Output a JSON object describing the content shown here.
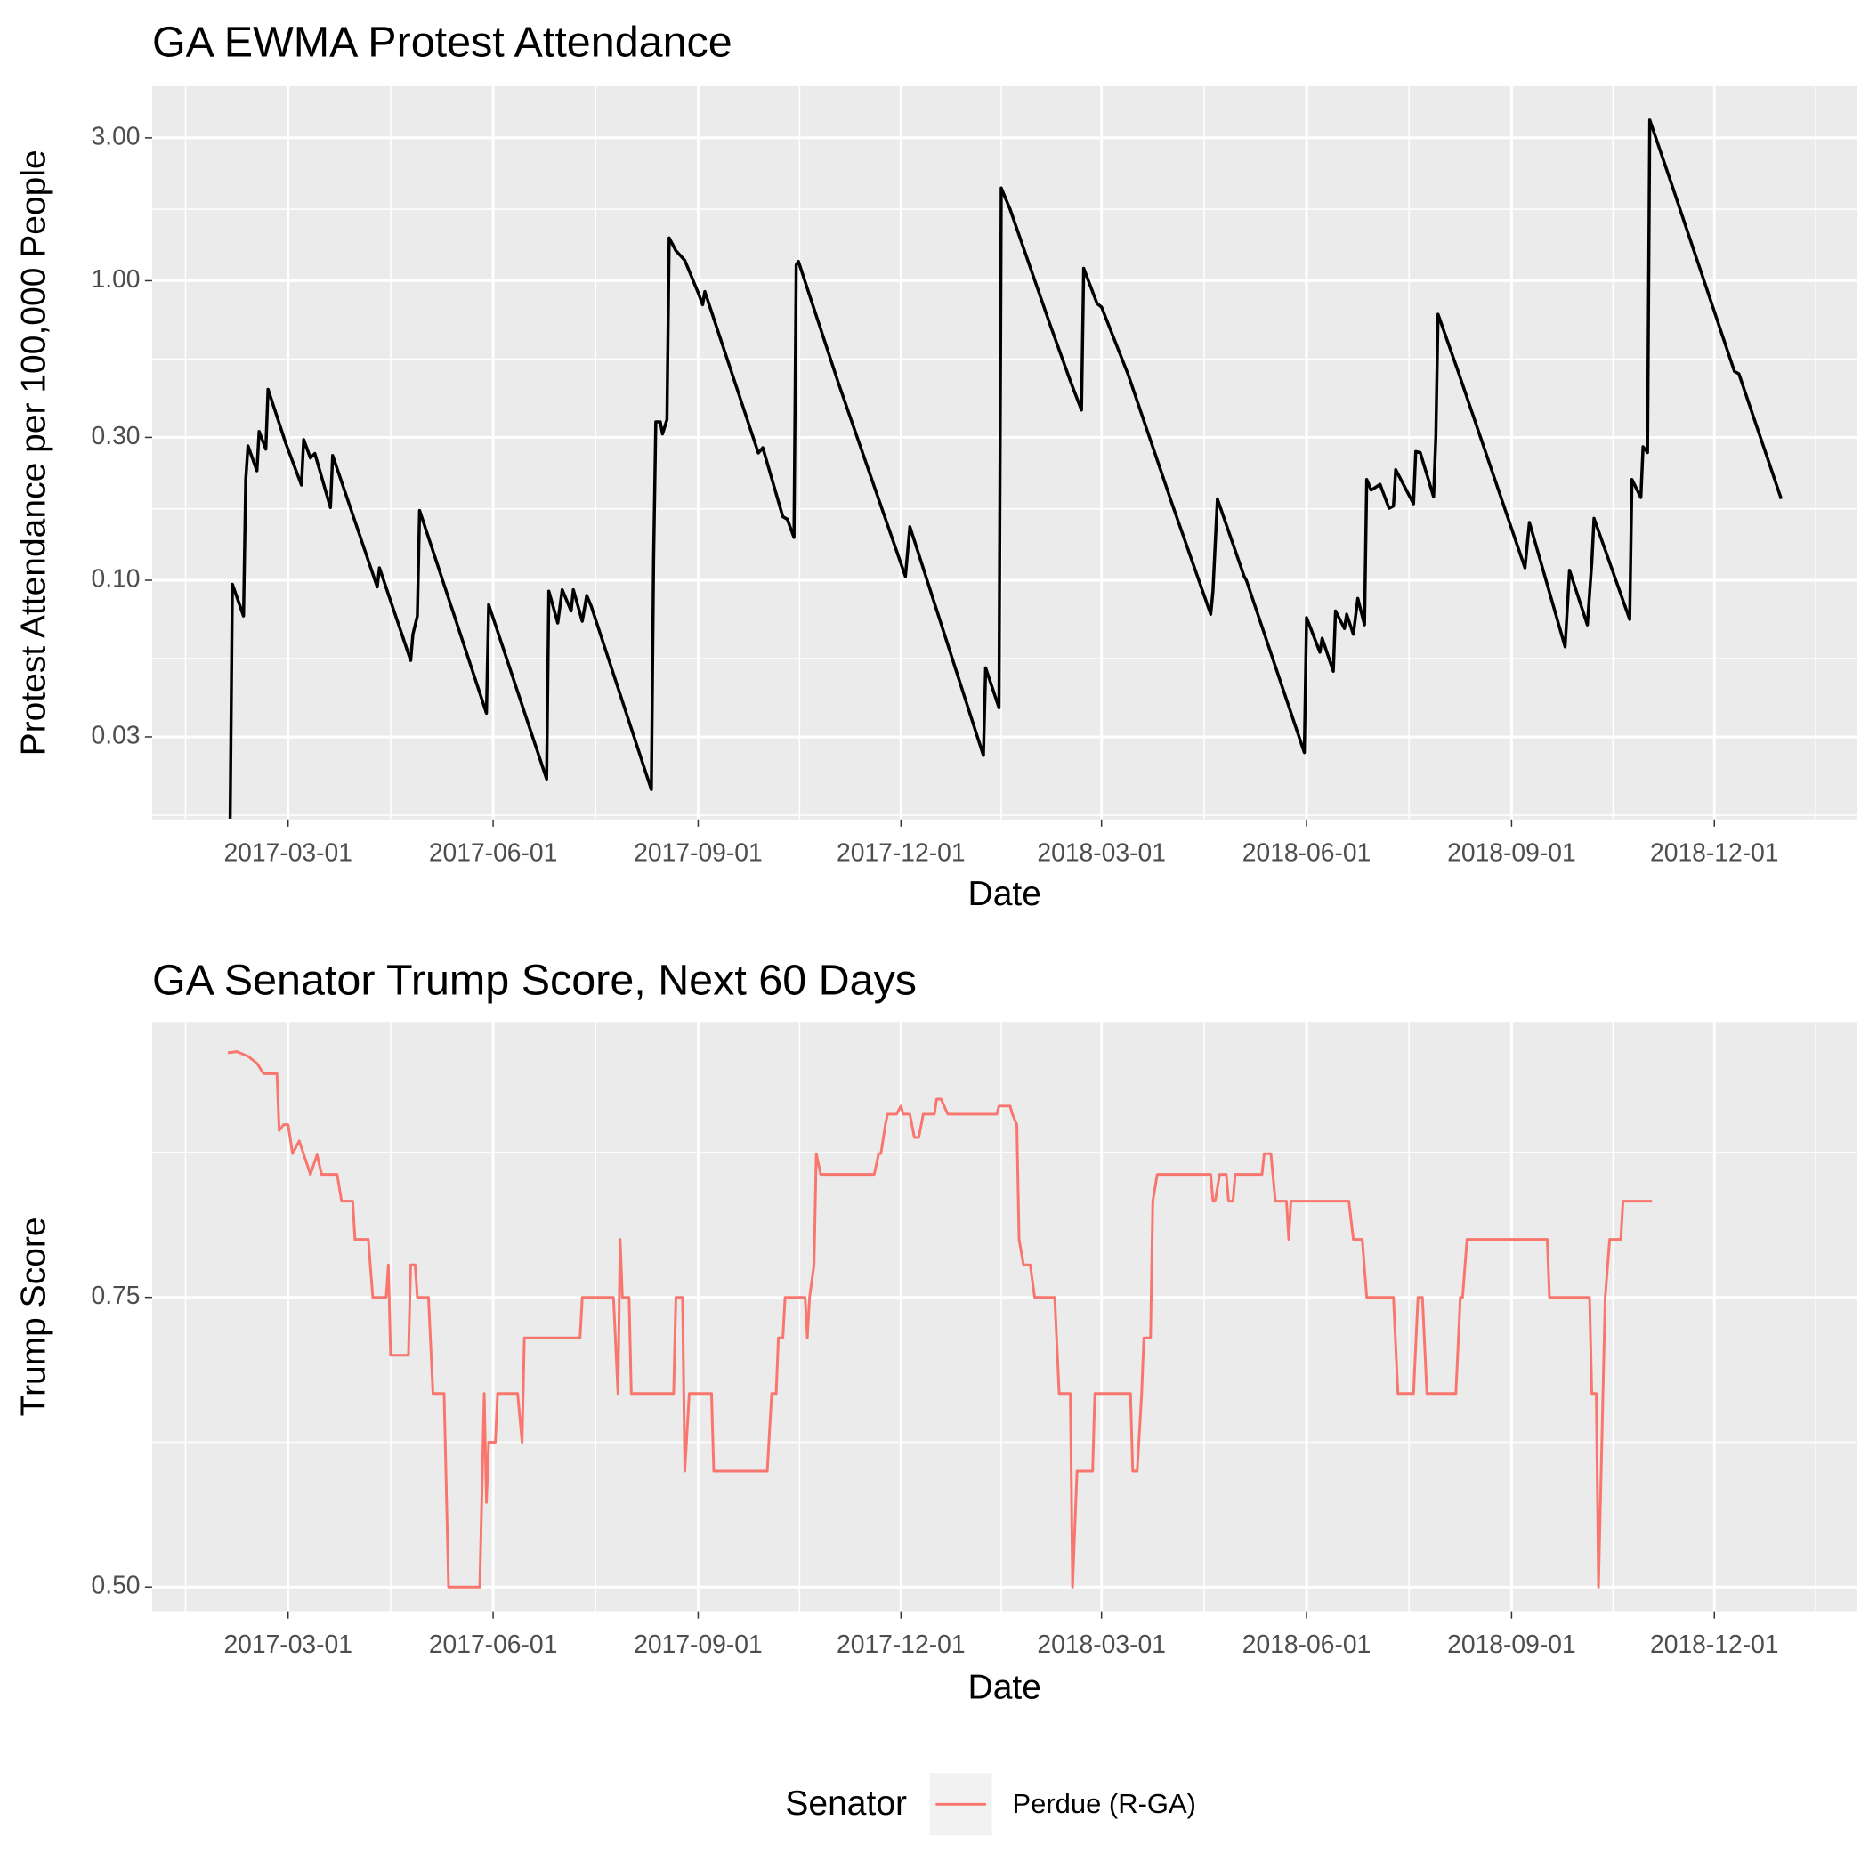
{
  "chart_data": [
    {
      "type": "line",
      "title": "GA EWMA Protest Attendance",
      "x_label": "Date",
      "y_label": "Protest Attendance per 100,000 People",
      "log_scale": true,
      "grid": true,
      "color": "#000000",
      "x": [
        "2017-02-03",
        "2017-02-04",
        "2017-02-09",
        "2017-02-10",
        "2017-02-11",
        "2017-02-15",
        "2017-02-16",
        "2017-02-19",
        "2017-02-20",
        "2017-02-28",
        "2017-03-07",
        "2017-03-08",
        "2017-03-11",
        "2017-03-13",
        "2017-03-20",
        "2017-03-21",
        "2017-04-10",
        "2017-04-11",
        "2017-04-25",
        "2017-04-26",
        "2017-04-28",
        "2017-04-29",
        "2017-05-29",
        "2017-05-30",
        "2017-06-25",
        "2017-06-26",
        "2017-06-30",
        "2017-07-02",
        "2017-07-06",
        "2017-07-07",
        "2017-07-11",
        "2017-07-13",
        "2017-07-15",
        "2017-08-11",
        "2017-08-12",
        "2017-08-13",
        "2017-08-15",
        "2017-08-16",
        "2017-08-18",
        "2017-08-19",
        "2017-08-22",
        "2017-08-26",
        "2017-09-01",
        "2017-09-03",
        "2017-09-04",
        "2017-09-28",
        "2017-09-30",
        "2017-10-09",
        "2017-10-11",
        "2017-10-14",
        "2017-10-15",
        "2017-10-16",
        "2017-11-03",
        "2017-12-03",
        "2017-12-05",
        "2018-01-07",
        "2018-01-08",
        "2018-01-14",
        "2018-01-15",
        "2018-01-19",
        "2018-02-06",
        "2018-02-15",
        "2018-02-20",
        "2018-02-21",
        "2018-02-27",
        "2018-03-01",
        "2018-03-13",
        "2018-04-02",
        "2018-04-19",
        "2018-04-20",
        "2018-04-22",
        "2018-05-04",
        "2018-05-05",
        "2018-05-31",
        "2018-06-01",
        "2018-06-07",
        "2018-06-08",
        "2018-06-13",
        "2018-06-14",
        "2018-06-18",
        "2018-06-19",
        "2018-06-22",
        "2018-06-24",
        "2018-06-27",
        "2018-06-28",
        "2018-06-30",
        "2018-07-04",
        "2018-07-08",
        "2018-07-10",
        "2018-07-11",
        "2018-07-19",
        "2018-07-20",
        "2018-07-22",
        "2018-07-28",
        "2018-07-29",
        "2018-07-30",
        "2018-08-08",
        "2018-09-07",
        "2018-09-09",
        "2018-09-25",
        "2018-09-27",
        "2018-10-05",
        "2018-10-07",
        "2018-10-08",
        "2018-10-24",
        "2018-10-25",
        "2018-10-29",
        "2018-10-30",
        "2018-11-01",
        "2018-11-02",
        "2018-11-12",
        "2018-12-10",
        "2018-12-12",
        "2018-12-31"
      ],
      "values": [
        0.016,
        0.097,
        0.076,
        0.217,
        0.281,
        0.232,
        0.314,
        0.274,
        0.434,
        0.286,
        0.208,
        0.295,
        0.256,
        0.265,
        0.175,
        0.261,
        0.095,
        0.11,
        0.054,
        0.066,
        0.076,
        0.171,
        0.036,
        0.083,
        0.0217,
        0.092,
        0.072,
        0.093,
        0.079,
        0.093,
        0.073,
        0.089,
        0.082,
        0.02,
        0.117,
        0.338,
        0.338,
        0.308,
        0.344,
        1.39,
        1.26,
        1.17,
        0.912,
        0.832,
        0.92,
        0.266,
        0.277,
        0.163,
        0.16,
        0.139,
        1.13,
        1.16,
        0.454,
        0.103,
        0.151,
        0.026,
        0.051,
        0.0375,
        2.04,
        1.73,
        0.711,
        0.463,
        0.37,
        1.1,
        0.839,
        0.817,
        0.485,
        0.177,
        0.077,
        0.092,
        0.187,
        0.103,
        0.1,
        0.0266,
        0.075,
        0.0575,
        0.064,
        0.0497,
        0.079,
        0.069,
        0.077,
        0.066,
        0.087,
        0.071,
        0.217,
        0.2,
        0.209,
        0.174,
        0.177,
        0.234,
        0.18,
        0.269,
        0.267,
        0.19,
        0.3,
        0.773,
        0.498,
        0.11,
        0.156,
        0.06,
        0.108,
        0.071,
        0.115,
        0.161,
        0.074,
        0.217,
        0.189,
        0.279,
        0.267,
        3.44,
        2.08,
        0.498,
        0.489,
        0.187
      ],
      "xlim": [
        "2016-12-30",
        "2019-02-03"
      ],
      "xticks": [
        "2017-03-01",
        "2017-06-01",
        "2017-09-01",
        "2017-12-01",
        "2018-03-01",
        "2018-06-01",
        "2018-09-01",
        "2018-12-01"
      ],
      "ylim": [
        0.0159,
        4.46
      ],
      "yticks": [
        0.03,
        {
          "value": 0.1,
          "label": "0.10"
        },
        {
          "value": 0.3,
          "label": "0.30"
        },
        {
          "value": 1,
          "label": "1.00"
        },
        {
          "value": 3,
          "label": "3.00"
        }
      ]
    },
    {
      "type": "line",
      "title": "GA Senator Trump Score, Next 60 Days",
      "x_label": "Date",
      "y_label": "Trump Score",
      "log_scale": false,
      "grid": true,
      "legend_title": "Senator",
      "legend_position": "bottom",
      "x": [
        "2017-02-02",
        "2017-02-06",
        "2017-02-11",
        "2017-02-15",
        "2017-02-18",
        "2017-02-24",
        "2017-02-25",
        "2017-02-27",
        "2017-03-01",
        "2017-03-03",
        "2017-03-06",
        "2017-03-11",
        "2017-03-14",
        "2017-03-16",
        "2017-03-23",
        "2017-03-25",
        "2017-03-30",
        "2017-03-31",
        "2017-04-06",
        "2017-04-08",
        "2017-04-14",
        "2017-04-15",
        "2017-04-16",
        "2017-04-24",
        "2017-04-25",
        "2017-04-27",
        "2017-04-28",
        "2017-05-03",
        "2017-05-05",
        "2017-05-10",
        "2017-05-12",
        "2017-05-26",
        "2017-05-28",
        "2017-05-29",
        "2017-05-30",
        "2017-06-02",
        "2017-06-03",
        "2017-06-12",
        "2017-06-14",
        "2017-06-15",
        "2017-07-10",
        "2017-07-11",
        "2017-07-25",
        "2017-07-27",
        "2017-07-28",
        "2017-07-29",
        "2017-08-01",
        "2017-08-02",
        "2017-08-21",
        "2017-08-22",
        "2017-08-25",
        "2017-08-26",
        "2017-08-28",
        "2017-09-07",
        "2017-09-08",
        "2017-10-02",
        "2017-10-04",
        "2017-10-06",
        "2017-10-07",
        "2017-10-09",
        "2017-10-10",
        "2017-10-19",
        "2017-10-20",
        "2017-10-21",
        "2017-10-23",
        "2017-10-24",
        "2017-10-26",
        "2017-11-19",
        "2017-11-21",
        "2017-11-22",
        "2017-11-24",
        "2017-11-25",
        "2017-11-29",
        "2017-12-01",
        "2017-12-02",
        "2017-12-05",
        "2017-12-07",
        "2017-12-09",
        "2017-12-11",
        "2017-12-16",
        "2017-12-17",
        "2017-12-19",
        "2017-12-22",
        "2018-01-13",
        "2018-01-14",
        "2018-01-19",
        "2018-01-20",
        "2018-01-22",
        "2018-01-23",
        "2018-01-25",
        "2018-01-28",
        "2018-01-30",
        "2018-02-08",
        "2018-02-10",
        "2018-02-15",
        "2018-02-16",
        "2018-02-18",
        "2018-02-25",
        "2018-02-26",
        "2018-03-14",
        "2018-03-15",
        "2018-03-17",
        "2018-03-19",
        "2018-03-20",
        "2018-03-23",
        "2018-03-24",
        "2018-03-26",
        "2018-04-19",
        "2018-04-20",
        "2018-04-21",
        "2018-04-23",
        "2018-04-26",
        "2018-04-27",
        "2018-04-29",
        "2018-04-30",
        "2018-05-12",
        "2018-05-13",
        "2018-05-16",
        "2018-05-18",
        "2018-05-23",
        "2018-05-24",
        "2018-05-25",
        "2018-06-20",
        "2018-06-22",
        "2018-06-26",
        "2018-06-28",
        "2018-07-10",
        "2018-07-12",
        "2018-07-19",
        "2018-07-21",
        "2018-07-23",
        "2018-07-25",
        "2018-08-07",
        "2018-08-09",
        "2018-08-10",
        "2018-08-12",
        "2018-09-17",
        "2018-09-18",
        "2018-10-06",
        "2018-10-07",
        "2018-10-09",
        "2018-10-10",
        "2018-10-12",
        "2018-10-13",
        "2018-10-15",
        "2018-10-20",
        "2018-10-21",
        "2018-11-03"
      ],
      "series": [
        {
          "name": "Perdue (R-GA)",
          "color": "#F8766D",
          "values": [
            0.961,
            0.962,
            0.958,
            0.952,
            0.943,
            0.943,
            0.894,
            0.899,
            0.899,
            0.874,
            0.885,
            0.856,
            0.873,
            0.856,
            0.856,
            0.833,
            0.833,
            0.8,
            0.8,
            0.75,
            0.75,
            0.778,
            0.7,
            0.7,
            0.778,
            0.778,
            0.75,
            0.75,
            0.667,
            0.667,
            0.5,
            0.5,
            0.667,
            0.573,
            0.625,
            0.625,
            0.667,
            0.667,
            0.625,
            0.715,
            0.715,
            0.75,
            0.75,
            0.667,
            0.8,
            0.75,
            0.75,
            0.667,
            0.667,
            0.75,
            0.75,
            0.6,
            0.667,
            0.667,
            0.6,
            0.6,
            0.667,
            0.667,
            0.715,
            0.715,
            0.75,
            0.75,
            0.715,
            0.75,
            0.778,
            0.874,
            0.856,
            0.856,
            0.874,
            0.874,
            0.899,
            0.908,
            0.908,
            0.915,
            0.908,
            0.908,
            0.888,
            0.888,
            0.908,
            0.908,
            0.921,
            0.921,
            0.908,
            0.908,
            0.915,
            0.915,
            0.908,
            0.899,
            0.8,
            0.778,
            0.778,
            0.75,
            0.75,
            0.667,
            0.667,
            0.5,
            0.6,
            0.6,
            0.667,
            0.667,
            0.6,
            0.6,
            0.667,
            0.715,
            0.715,
            0.833,
            0.856,
            0.856,
            0.833,
            0.833,
            0.856,
            0.856,
            0.833,
            0.833,
            0.856,
            0.856,
            0.874,
            0.874,
            0.833,
            0.833,
            0.8,
            0.833,
            0.833,
            0.8,
            0.8,
            0.75,
            0.75,
            0.667,
            0.667,
            0.75,
            0.75,
            0.667,
            0.667,
            0.75,
            0.75,
            0.8,
            0.8,
            0.75,
            0.75,
            0.667,
            0.667,
            0.5,
            0.667,
            0.75,
            0.8,
            0.8,
            0.833,
            0.833
          ]
        }
      ],
      "xlim": [
        "2016-12-30",
        "2019-02-03"
      ],
      "xticks": [
        "2017-03-01",
        "2017-06-01",
        "2017-09-01",
        "2017-12-01",
        "2018-03-01",
        "2018-06-01",
        "2018-09-01",
        "2018-12-01"
      ],
      "ylim": [
        0.479,
        0.9876
      ],
      "yticks": [
        {
          "value": 0.5,
          "label": "0.50"
        },
        0.75
      ]
    }
  ]
}
